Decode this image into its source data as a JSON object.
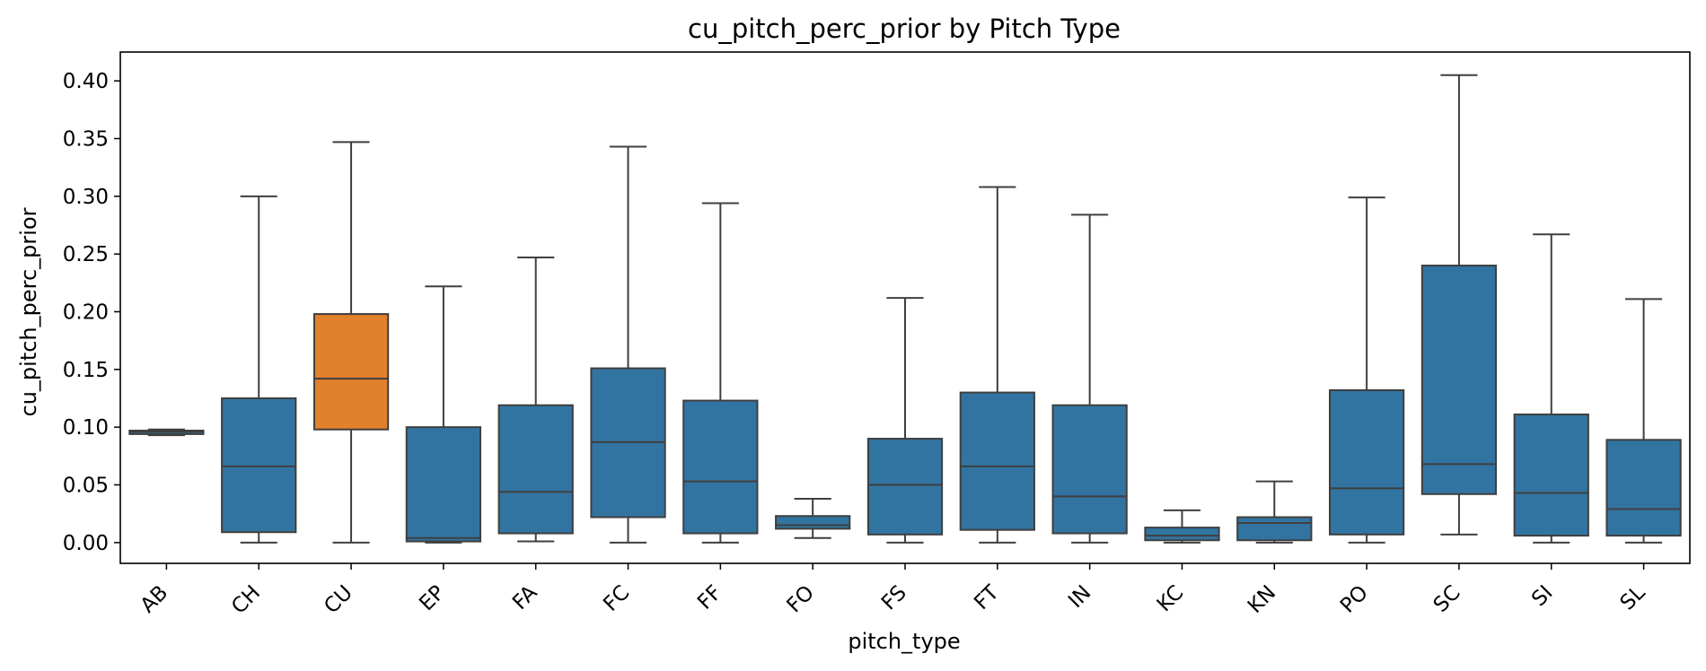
{
  "chart_data": {
    "type": "box",
    "title": "cu_pitch_perc_prior by Pitch Type",
    "xlabel": "pitch_type",
    "ylabel": "cu_pitch_perc_prior",
    "ylim": [
      -0.018,
      0.425
    ],
    "yticks": [
      0.0,
      0.05,
      0.1,
      0.15,
      0.2,
      0.25,
      0.3,
      0.35,
      0.4
    ],
    "ytick_labels": [
      "0.00",
      "0.05",
      "0.10",
      "0.15",
      "0.20",
      "0.25",
      "0.30",
      "0.35",
      "0.40"
    ],
    "grid": false,
    "legend": "none",
    "box_color": "#3274a1",
    "highlight_color": "#e1812c",
    "line_color": "#3f3f3f",
    "highlight_category": "CU",
    "categories": [
      "AB",
      "CH",
      "CU",
      "EP",
      "FA",
      "FC",
      "FF",
      "FO",
      "FS",
      "FT",
      "IN",
      "KC",
      "KN",
      "PO",
      "SC",
      "SI",
      "SL"
    ],
    "boxes": [
      {
        "category": "AB",
        "whisker_low": 0.093,
        "q1": 0.094,
        "median": 0.096,
        "q3": 0.097,
        "whisker_high": 0.098
      },
      {
        "category": "CH",
        "whisker_low": 0.0,
        "q1": 0.009,
        "median": 0.066,
        "q3": 0.125,
        "whisker_high": 0.3
      },
      {
        "category": "CU",
        "whisker_low": 0.0,
        "q1": 0.098,
        "median": 0.142,
        "q3": 0.198,
        "whisker_high": 0.347
      },
      {
        "category": "EP",
        "whisker_low": 0.0,
        "q1": 0.001,
        "median": 0.004,
        "q3": 0.1,
        "whisker_high": 0.222
      },
      {
        "category": "FA",
        "whisker_low": 0.001,
        "q1": 0.008,
        "median": 0.044,
        "q3": 0.119,
        "whisker_high": 0.247
      },
      {
        "category": "FC",
        "whisker_low": 0.0,
        "q1": 0.022,
        "median": 0.087,
        "q3": 0.151,
        "whisker_high": 0.343
      },
      {
        "category": "FF",
        "whisker_low": 0.0,
        "q1": 0.008,
        "median": 0.053,
        "q3": 0.123,
        "whisker_high": 0.294
      },
      {
        "category": "FO",
        "whisker_low": 0.004,
        "q1": 0.012,
        "median": 0.015,
        "q3": 0.023,
        "whisker_high": 0.038
      },
      {
        "category": "FS",
        "whisker_low": 0.0,
        "q1": 0.007,
        "median": 0.05,
        "q3": 0.09,
        "whisker_high": 0.212
      },
      {
        "category": "FT",
        "whisker_low": 0.0,
        "q1": 0.011,
        "median": 0.066,
        "q3": 0.13,
        "whisker_high": 0.308
      },
      {
        "category": "IN",
        "whisker_low": 0.0,
        "q1": 0.008,
        "median": 0.04,
        "q3": 0.119,
        "whisker_high": 0.284
      },
      {
        "category": "KC",
        "whisker_low": 0.0,
        "q1": 0.002,
        "median": 0.006,
        "q3": 0.013,
        "whisker_high": 0.028
      },
      {
        "category": "KN",
        "whisker_low": 0.0,
        "q1": 0.002,
        "median": 0.017,
        "q3": 0.022,
        "whisker_high": 0.053
      },
      {
        "category": "PO",
        "whisker_low": 0.0,
        "q1": 0.007,
        "median": 0.047,
        "q3": 0.132,
        "whisker_high": 0.299
      },
      {
        "category": "SC",
        "whisker_low": 0.007,
        "q1": 0.042,
        "median": 0.068,
        "q3": 0.24,
        "whisker_high": 0.405
      },
      {
        "category": "SI",
        "whisker_low": 0.0,
        "q1": 0.006,
        "median": 0.043,
        "q3": 0.111,
        "whisker_high": 0.267
      },
      {
        "category": "SL",
        "whisker_low": 0.0,
        "q1": 0.006,
        "median": 0.029,
        "q3": 0.089,
        "whisker_high": 0.211
      }
    ]
  }
}
